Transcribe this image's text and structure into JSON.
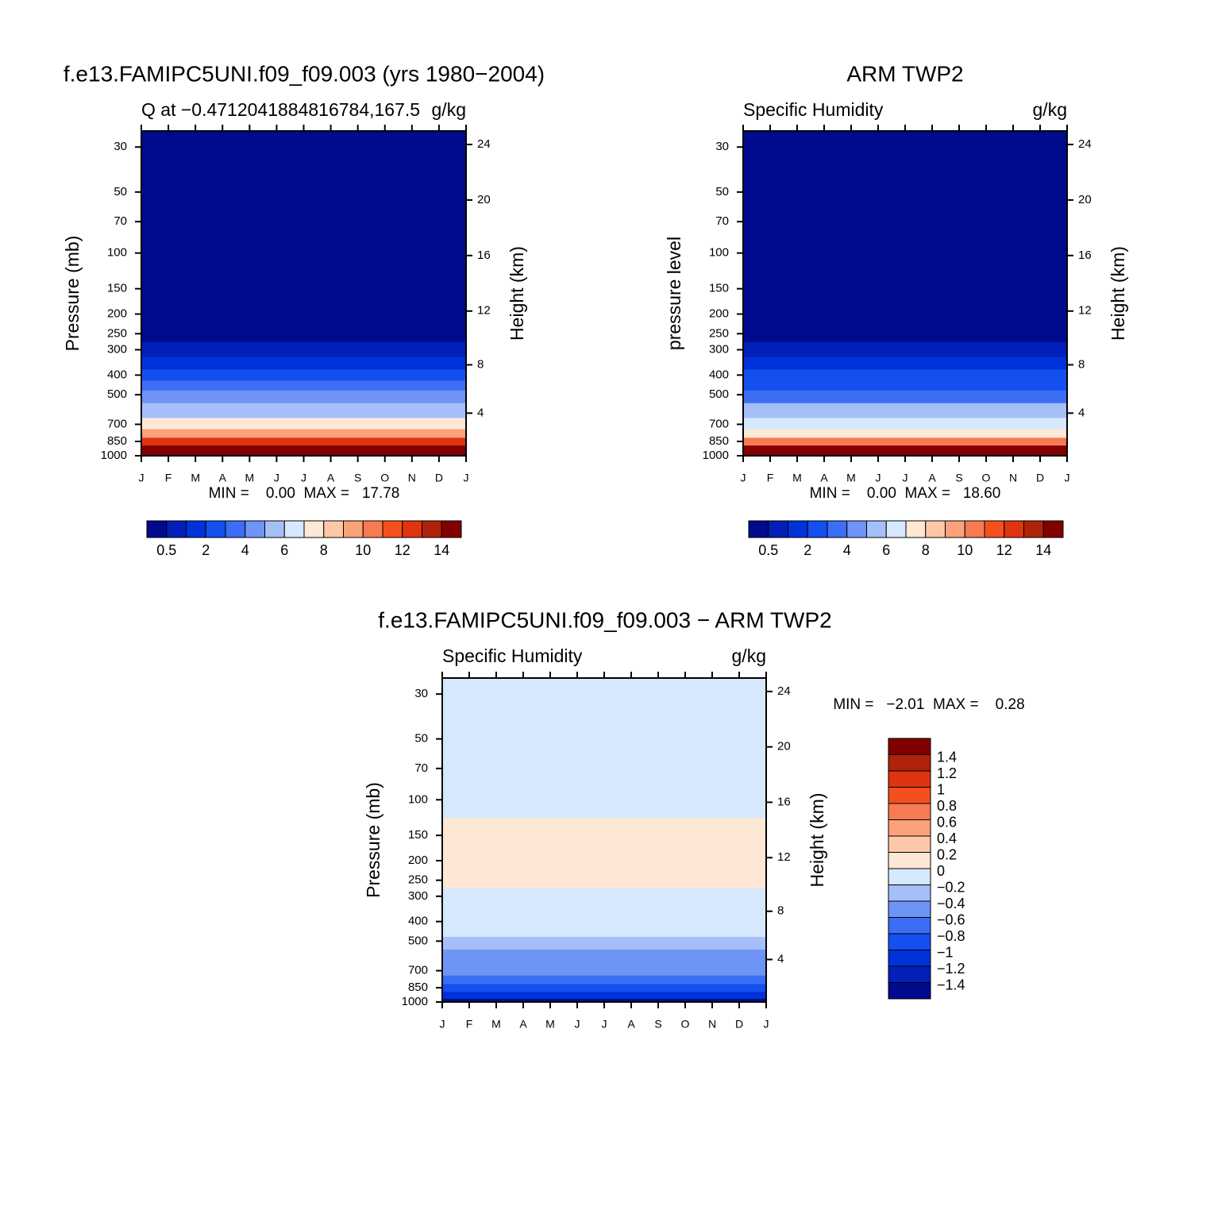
{
  "chart_data": [
    {
      "type": "contour",
      "title": "f.e13.FAMIPC5UNI.f09_f09.003 (yrs 1980−2004)",
      "subtitle_left": "Q at −0.4712041884816784,167.5",
      "subtitle_right": "g/kg",
      "ylabel": "Pressure (mb)",
      "y2label": "Height (km)",
      "stats": "MIN =    0.00  MAX =   17.78",
      "categories": [
        "J",
        "F",
        "M",
        "A",
        "M",
        "J",
        "J",
        "A",
        "S",
        "O",
        "N",
        "D",
        "J"
      ],
      "ylim": [
        1000,
        25
      ],
      "yticks": [
        30,
        50,
        70,
        100,
        150,
        200,
        250,
        300,
        400,
        500,
        700,
        850,
        1000
      ],
      "y2ticks": [
        4,
        8,
        12,
        16,
        20,
        24
      ],
      "levels": [
        0.5,
        1,
        2,
        3,
        4,
        5,
        6,
        7,
        8,
        9,
        10,
        11,
        12,
        13,
        14
      ],
      "level_ticks": [
        0.5,
        2,
        4,
        6,
        8,
        10,
        12,
        14
      ],
      "colors": [
        "#000a8c",
        "#0020b8",
        "#0032d9",
        "#1450f0",
        "#3c6ef5",
        "#6e94f5",
        "#a5bff8",
        "#d6e8fd",
        "#fde8d5",
        "#fcc8a8",
        "#fba27a",
        "#f87a52",
        "#f4501e",
        "#de3410",
        "#b0220a",
        "#820000"
      ],
      "profile": {
        "pressure": [
          1000,
          925,
          850,
          775,
          700,
          600,
          500,
          450,
          400,
          350,
          300,
          250,
          200,
          150,
          100,
          70,
          50,
          30,
          25
        ],
        "values": [
          17.5,
          15,
          12,
          9.5,
          7.5,
          5.5,
          4,
          3,
          2.2,
          1.3,
          0.7,
          0.35,
          0.1,
          0.02,
          0,
          0,
          0,
          0,
          0
        ]
      }
    },
    {
      "type": "contour",
      "title": "ARM TWP2",
      "subtitle_left": "Specific Humidity",
      "subtitle_right": "g/kg",
      "ylabel": "pressure level",
      "y2label": "Height (km)",
      "stats": "MIN =    0.00  MAX =   18.60",
      "categories": [
        "J",
        "F",
        "M",
        "A",
        "M",
        "J",
        "J",
        "A",
        "S",
        "O",
        "N",
        "D",
        "J"
      ],
      "ylim": [
        1000,
        25
      ],
      "yticks": [
        30,
        50,
        70,
        100,
        150,
        200,
        250,
        300,
        400,
        500,
        700,
        850,
        1000
      ],
      "y2ticks": [
        4,
        8,
        12,
        16,
        20,
        24
      ],
      "levels": [
        0.5,
        1,
        2,
        3,
        4,
        5,
        6,
        7,
        8,
        9,
        10,
        11,
        12,
        13,
        14
      ],
      "level_ticks": [
        0.5,
        2,
        4,
        6,
        8,
        10,
        12,
        14
      ],
      "colors": [
        "#000a8c",
        "#0020b8",
        "#0032d9",
        "#1450f0",
        "#3c6ef5",
        "#6e94f5",
        "#a5bff8",
        "#d6e8fd",
        "#fde8d5",
        "#fcc8a8",
        "#fba27a",
        "#f87a52",
        "#f4501e",
        "#de3410",
        "#b0220a",
        "#820000"
      ],
      "profile": {
        "pressure": [
          1000,
          925,
          850,
          775,
          700,
          600,
          500,
          450,
          400,
          350,
          300,
          250,
          200,
          150,
          100,
          70,
          50,
          30,
          25
        ],
        "values": [
          18,
          14,
          10,
          7.8,
          6.5,
          5,
          3.5,
          2.8,
          2,
          1.3,
          0.6,
          0.3,
          0.1,
          0.02,
          0,
          0,
          0,
          0,
          0
        ]
      }
    },
    {
      "type": "contour",
      "title": "f.e13.FAMIPC5UNI.f09_f09.003 − ARM TWP2",
      "subtitle_left": "Specific Humidity",
      "subtitle_right": "g/kg",
      "ylabel": "Pressure (mb)",
      "y2label": "Height (km)",
      "stats": "MIN =   −2.01  MAX =    0.28",
      "categories": [
        "J",
        "F",
        "M",
        "A",
        "M",
        "J",
        "J",
        "A",
        "S",
        "O",
        "N",
        "D",
        "J"
      ],
      "ylim": [
        1000,
        25
      ],
      "yticks": [
        30,
        50,
        70,
        100,
        150,
        200,
        250,
        300,
        400,
        500,
        700,
        850,
        1000
      ],
      "y2ticks": [
        4,
        8,
        12,
        16,
        20,
        24
      ],
      "levels": [
        -1.4,
        -1.2,
        -1,
        -0.8,
        -0.6,
        -0.4,
        -0.2,
        0,
        0.2,
        0.4,
        0.6,
        0.8,
        1,
        1.2,
        1.4
      ],
      "level_ticks": [
        {
          "value": -1.4,
          "label": "−1.4"
        },
        {
          "value": -1.2,
          "label": "−1.2"
        },
        {
          "value": -1,
          "label": "−1"
        },
        {
          "value": -0.8,
          "label": "−0.8"
        },
        {
          "value": -0.6,
          "label": "−0.6"
        },
        {
          "value": -0.4,
          "label": "−0.4"
        },
        {
          "value": -0.2,
          "label": "−0.2"
        },
        0,
        0.2,
        0.4,
        0.6,
        0.8,
        1,
        1.2,
        1.4
      ],
      "colors": [
        "#000a8c",
        "#0020b8",
        "#0032d9",
        "#1450f0",
        "#3c6ef5",
        "#6e94f5",
        "#a5bff8",
        "#d6e8fd",
        "#fde8d5",
        "#fcc8a8",
        "#fba27a",
        "#f87a52",
        "#f4501e",
        "#de3410",
        "#b0220a",
        "#820000"
      ],
      "profile": {
        "pressure": [
          1000,
          925,
          850,
          775,
          700,
          600,
          500,
          450,
          400,
          350,
          300,
          250,
          200,
          150,
          100,
          70,
          50,
          30,
          25
        ],
        "values": [
          -1.5,
          -1.1,
          -1,
          -0.8,
          -0.6,
          -0.5,
          -0.3,
          -0.2,
          -0.15,
          -0.1,
          -0.05,
          0.1,
          0.1,
          0.1,
          -0.1,
          -0.1,
          -0.1,
          -0.1,
          -0.1
        ]
      }
    }
  ]
}
